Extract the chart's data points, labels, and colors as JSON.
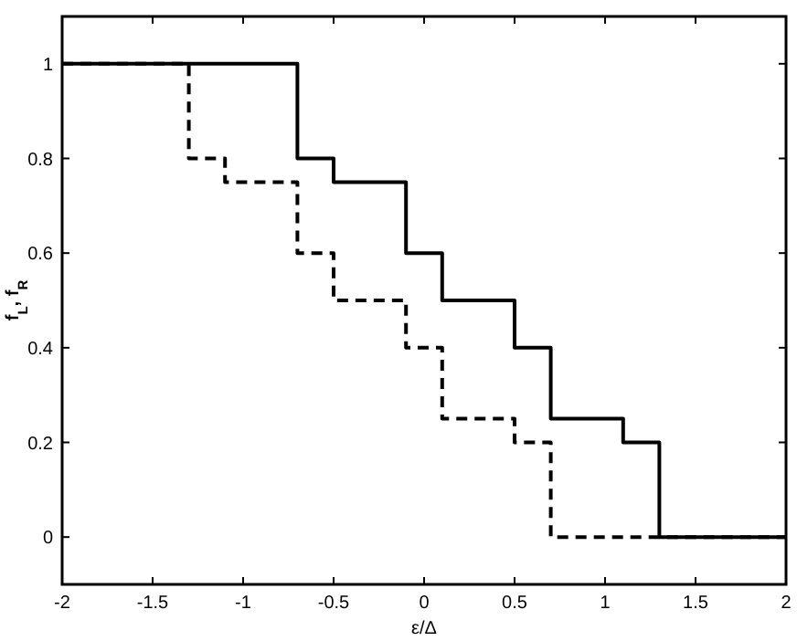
{
  "chart_data": {
    "type": "step",
    "xlabel": "ε/Δ",
    "ylabel": "f$_{L}$, f$_{R}$",
    "xlim": [
      -2,
      2
    ],
    "xticks": [
      -2,
      -1.5,
      -1,
      -0.5,
      0,
      0.5,
      1,
      1.5,
      2
    ],
    "ylim": [
      -0.1,
      1.1
    ],
    "yticks": [
      0,
      0.2,
      0.4,
      0.6,
      0.8,
      1
    ],
    "series": [
      {
        "color": "#000000",
        "line_style": "solid",
        "x": [
          -2,
          -0.7,
          -0.5,
          -0.1,
          0.1,
          0.5,
          0.7,
          1.1,
          1.3,
          2
        ],
        "values": [
          1,
          0.8,
          0.75,
          0.6,
          0.5,
          0.4,
          0.25,
          0.2,
          0,
          0
        ]
      },
      {
        "color": "#000000",
        "line_style": "dashed",
        "x": [
          -2,
          -1.3,
          -1.1,
          -0.7,
          -0.5,
          -0.1,
          0.1,
          0.5,
          0.7,
          2
        ],
        "values": [
          1,
          0.8,
          0.75,
          0.6,
          0.5,
          0.4,
          0.25,
          0.2,
          0,
          0
        ]
      }
    ]
  }
}
